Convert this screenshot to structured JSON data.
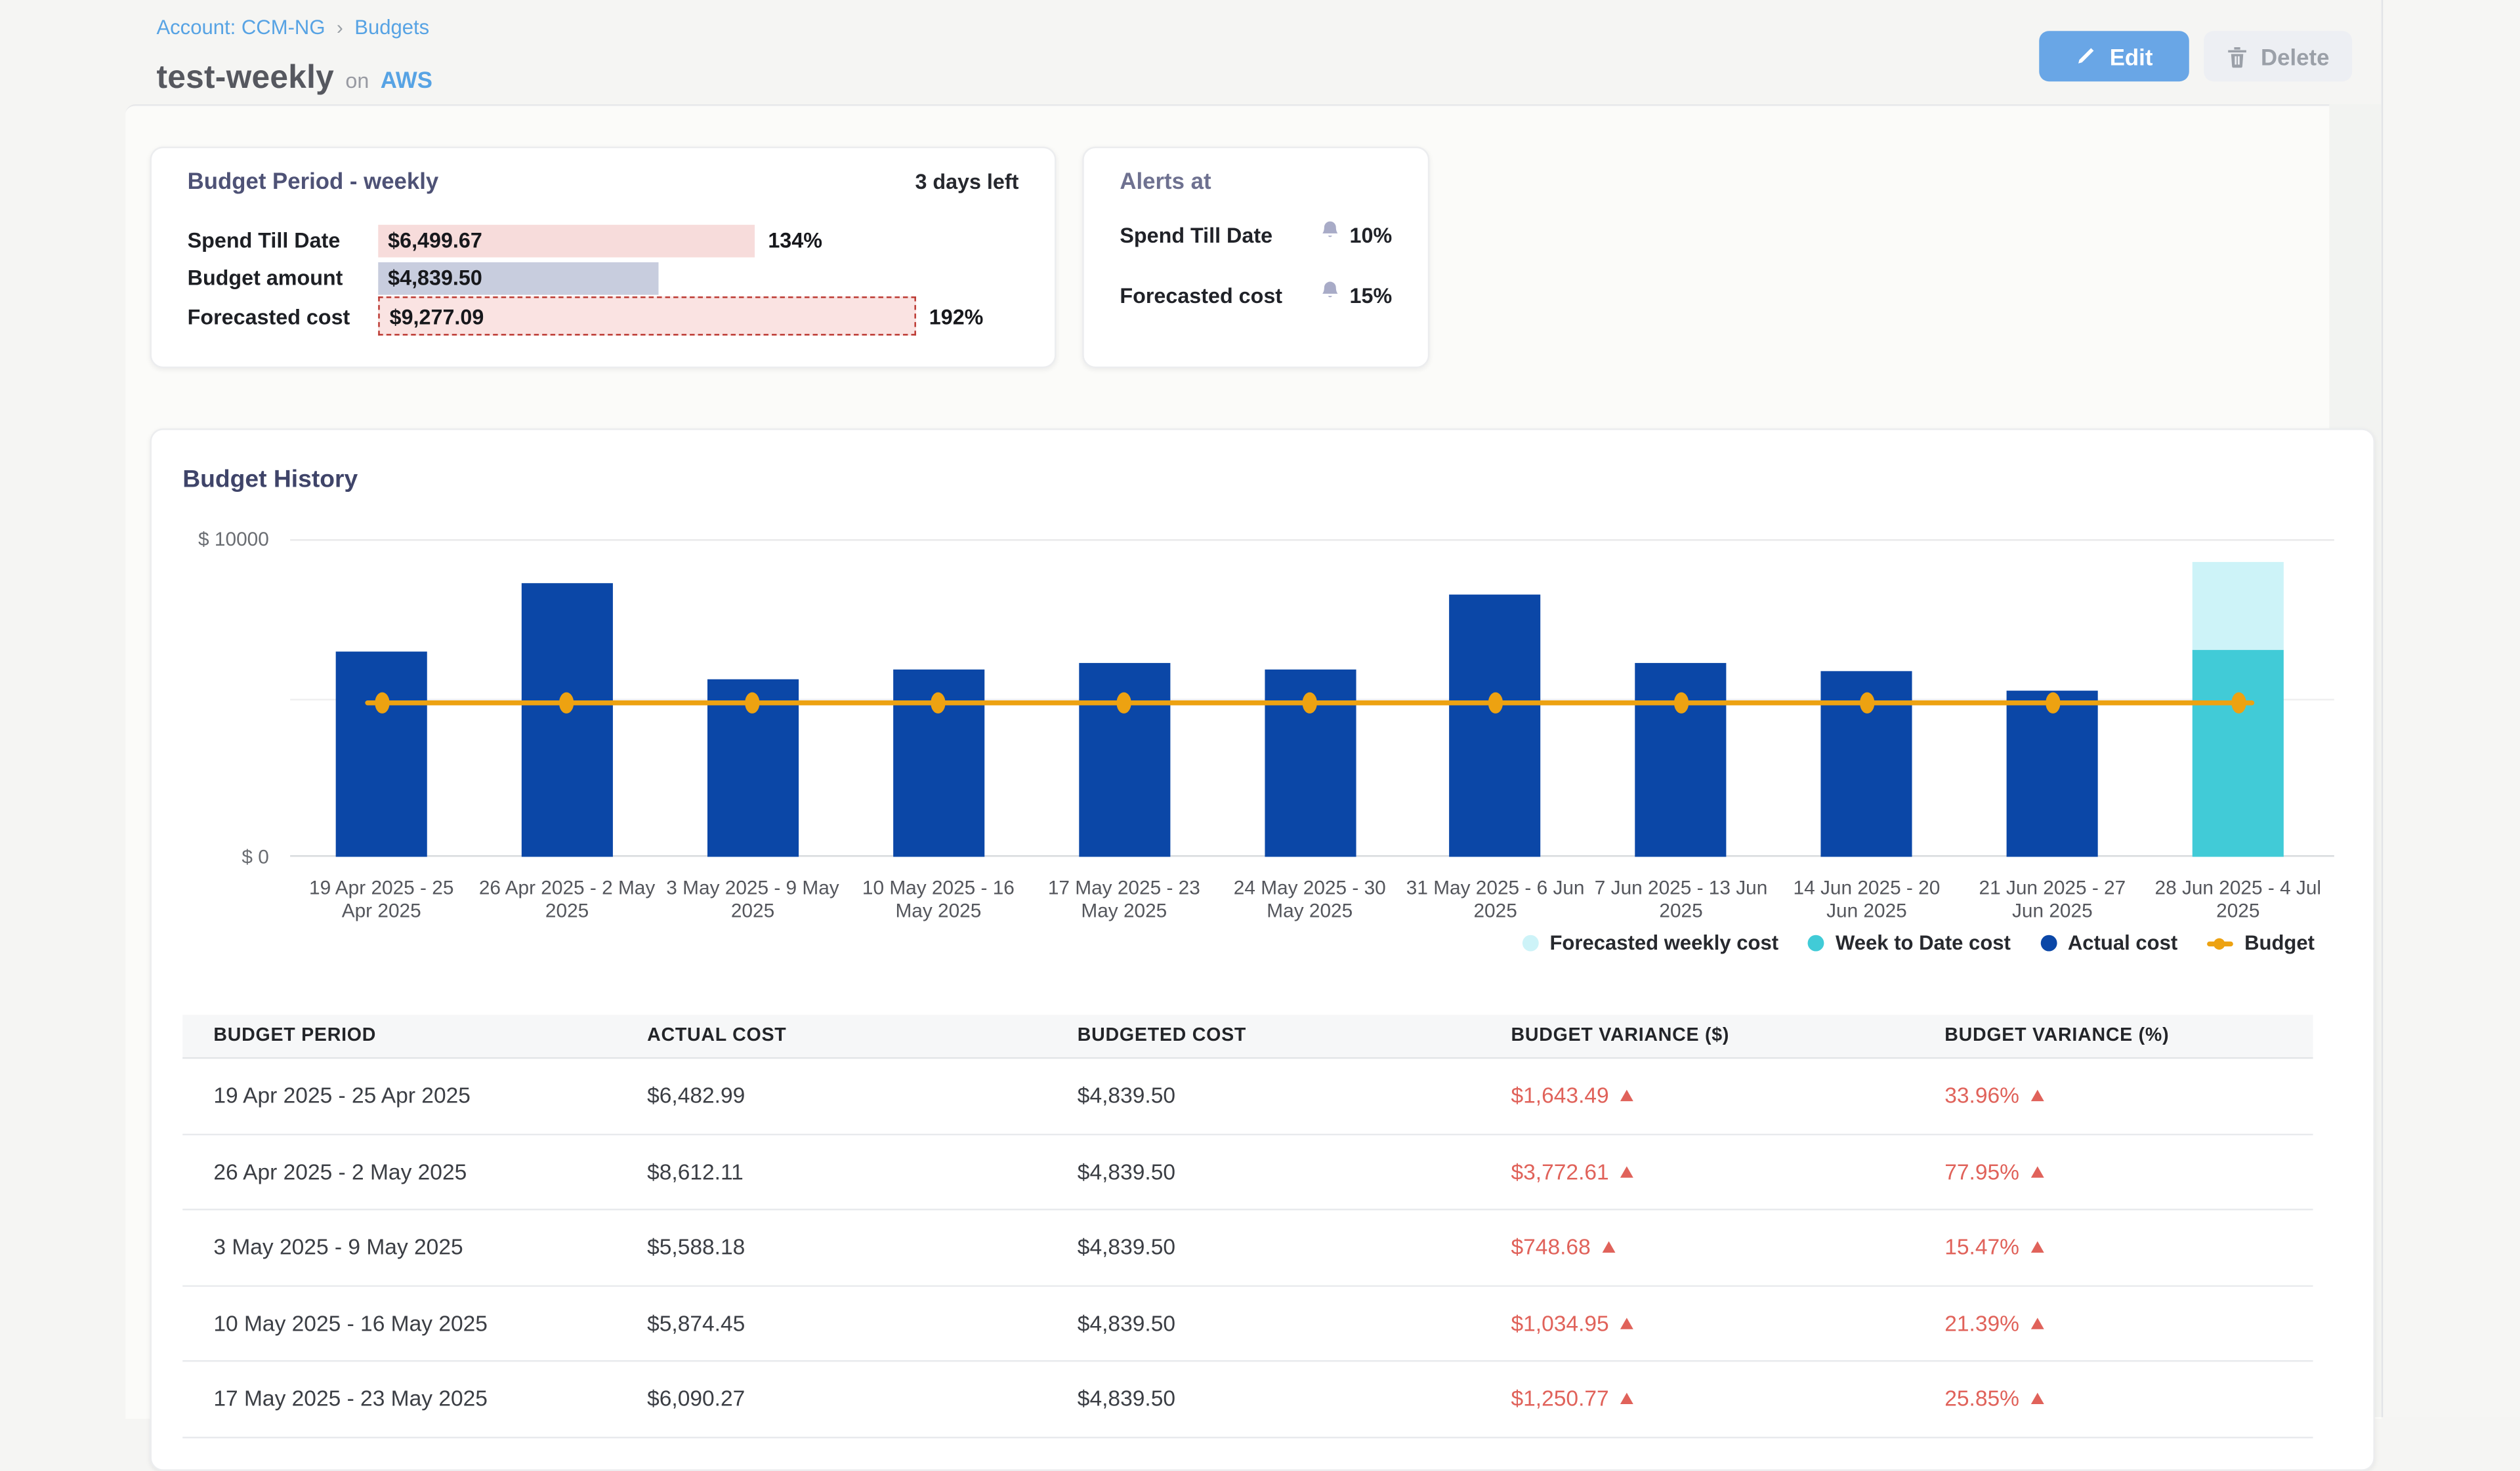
{
  "page": {
    "breadcrumb": {
      "account": "Account: CCM-NG",
      "separator": "›",
      "section": "Budgets"
    },
    "title": {
      "name": "test-weekly",
      "connector": "on",
      "platform": "AWS"
    },
    "actions": {
      "edit": "Edit",
      "delete": "Delete"
    }
  },
  "summary": {
    "header": "Budget Period - weekly",
    "days_left": "3 days left",
    "max_value": 9277.09,
    "rows": [
      {
        "label": "Spend Till Date",
        "value": "$6,499.67",
        "value_num": 6499.67,
        "percent": "134%",
        "style": "spend"
      },
      {
        "label": "Budget amount",
        "value": "$4,839.50",
        "value_num": 4839.5,
        "percent": "",
        "style": "budget"
      },
      {
        "label": "Forecasted cost",
        "value": "$9,277.09",
        "value_num": 9277.09,
        "percent": "192%",
        "style": "forecast"
      }
    ]
  },
  "alerts": {
    "header": "Alerts at",
    "rows": [
      {
        "label": "Spend Till Date",
        "threshold": "10%"
      },
      {
        "label": "Forecasted cost",
        "threshold": "15%"
      }
    ]
  },
  "chart_data": {
    "type": "bar",
    "title": "Budget History",
    "ylim": [
      0,
      10000
    ],
    "y_ticks": [
      {
        "value": 10000,
        "label": "$ 10000"
      },
      {
        "value": 5000,
        "label": ""
      },
      {
        "value": 0,
        "label": "$ 0"
      }
    ],
    "categories": [
      "19 Apr 2025 - 25 Apr 2025",
      "26 Apr 2025 - 2 May 2025",
      "3 May 2025 - 9 May 2025",
      "10 May 2025 - 16 May 2025",
      "17 May 2025 - 23 May 2025",
      "24 May 2025 - 30 May 2025",
      "31 May 2025 - 6 Jun 2025",
      "7 Jun 2025 - 13 Jun 2025",
      "14 Jun 2025 - 20 Jun 2025",
      "21 Jun 2025 - 27 Jun 2025",
      "28 Jun 2025 - 4 Jul 2025"
    ],
    "category_lines": [
      [
        "19 Apr 2025 - 25",
        "Apr 2025"
      ],
      [
        "26 Apr 2025 - 2 May",
        "2025"
      ],
      [
        "3 May 2025 - 9 May",
        "2025"
      ],
      [
        "10 May 2025 - 16",
        "May 2025"
      ],
      [
        "17 May 2025 - 23",
        "May 2025"
      ],
      [
        "24 May 2025 - 30",
        "May 2025"
      ],
      [
        "31 May 2025 - 6 Jun",
        "2025"
      ],
      [
        "7 Jun 2025 - 13 Jun",
        "2025"
      ],
      [
        "14 Jun 2025 - 20",
        "Jun 2025"
      ],
      [
        "21 Jun 2025 - 27",
        "Jun 2025"
      ],
      [
        "28 Jun 2025 - 4 Jul",
        "2025"
      ]
    ],
    "series": [
      {
        "name": "Actual cost",
        "type": "bar",
        "color": "#0b47a7",
        "values": [
          6482.99,
          8612.11,
          5588.18,
          5874.45,
          6090.27,
          5890,
          8245,
          6110,
          5860,
          5210,
          null
        ]
      },
      {
        "name": "Week to Date cost",
        "type": "bar",
        "color": "#41cbd7",
        "values": [
          null,
          null,
          null,
          null,
          null,
          null,
          null,
          null,
          null,
          null,
          6499.67
        ]
      },
      {
        "name": "Forecasted weekly cost",
        "type": "bar-stack-top",
        "color": "#cdf3f8",
        "values": [
          null,
          null,
          null,
          null,
          null,
          null,
          null,
          null,
          null,
          null,
          9277.09
        ]
      },
      {
        "name": "Budget",
        "type": "line",
        "color": "#eda211",
        "constant_value": 4839.5
      }
    ],
    "legend": [
      {
        "label": "Forecasted weekly cost",
        "color": "#cdf3f8",
        "marker": "dot"
      },
      {
        "label": "Week to Date cost",
        "color": "#41cbd7",
        "marker": "dot"
      },
      {
        "label": "Actual cost",
        "color": "#0b47a7",
        "marker": "dot"
      },
      {
        "label": "Budget",
        "color": "#eda211",
        "marker": "line-dot"
      }
    ],
    "legend_position": "bottom-right",
    "grid": "horizontal-only"
  },
  "table": {
    "columns": [
      "BUDGET PERIOD",
      "ACTUAL COST",
      "BUDGETED COST",
      "BUDGET VARIANCE ($)",
      "BUDGET VARIANCE (%)"
    ],
    "rows": [
      {
        "period": "19 Apr 2025 - 25 Apr 2025",
        "actual": "$6,482.99",
        "budgeted": "$4,839.50",
        "variance_usd": "$1,643.49",
        "variance_pct": "33.96%"
      },
      {
        "period": "26 Apr 2025 - 2 May 2025",
        "actual": "$8,612.11",
        "budgeted": "$4,839.50",
        "variance_usd": "$3,772.61",
        "variance_pct": "77.95%"
      },
      {
        "period": "3 May 2025 - 9 May 2025",
        "actual": "$5,588.18",
        "budgeted": "$4,839.50",
        "variance_usd": "$748.68",
        "variance_pct": "15.47%"
      },
      {
        "period": "10 May 2025 - 16 May 2025",
        "actual": "$5,874.45",
        "budgeted": "$4,839.50",
        "variance_usd": "$1,034.95",
        "variance_pct": "21.39%"
      },
      {
        "period": "17 May 2025 - 23 May 2025",
        "actual": "$6,090.27",
        "budgeted": "$4,839.50",
        "variance_usd": "$1,250.77",
        "variance_pct": "25.85%"
      }
    ]
  },
  "colors": {
    "link_blue": "#57a3e4",
    "edit_button_blue": "#69a6e6",
    "actual_navy": "#0b47a7",
    "week_to_date_teal": "#41cbd7",
    "forecast_cyan": "#cdf3f8",
    "budget_orange": "#eda211",
    "variance_red": "#e0625a",
    "bell_lavender": "#a8abc7",
    "spend_bar_pink": "#f7dcdb",
    "budget_bar_lavender": "#c8cdde",
    "forecast_bar_pink": "#fae3e2",
    "forecast_dash_red": "#bc3a33"
  }
}
